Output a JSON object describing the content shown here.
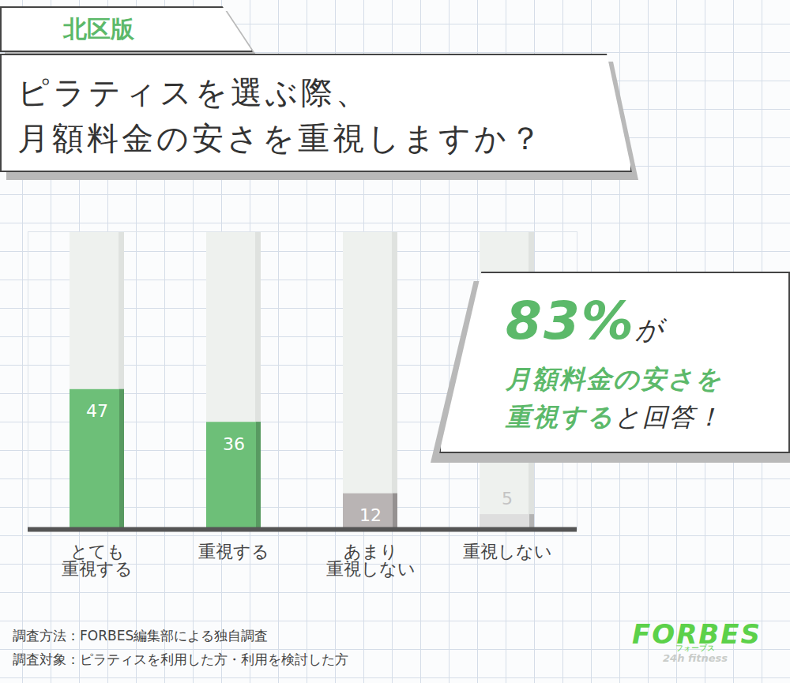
{
  "chart_data": {
    "type": "bar",
    "badge": "北区版",
    "title": "ピラティスを選ぶ際、\n月額料金の安さを重視しますか？",
    "categories": [
      "とても\n重視する",
      "重視する",
      "あまり\n重視しない",
      "重視しない"
    ],
    "values": [
      47,
      36,
      12,
      5
    ],
    "colors": [
      "#6dbf78",
      "#6dbf78",
      "#b9b4b4",
      "#dedede"
    ],
    "ylim": [
      0,
      100
    ],
    "data_labels": true,
    "tick_labels": "x",
    "grid": false,
    "annotation": [
      [
        "83%",
        "が"
      ],
      [
        "月額料金の安さを"
      ],
      [
        "重視する",
        "と回答！"
      ]
    ],
    "caption": [
      "調査方法：FORBES編集部による独自調査",
      "調査対象：ピラティスを利用した方・利用を検討した方"
    ],
    "logo": {
      "name": "FORBES",
      "kana": "フォーブス",
      "tagline": "24h fitness"
    }
  }
}
